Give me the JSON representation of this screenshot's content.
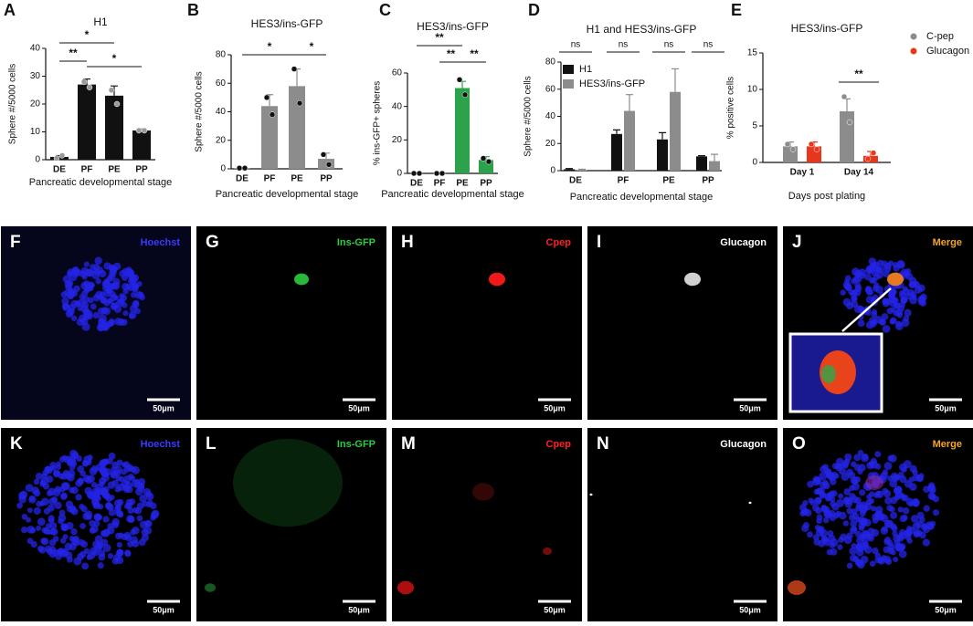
{
  "chart_data": [
    {
      "type": "bar",
      "panel": "A",
      "title": "H1",
      "y_label": "Sphere #/5000 cells",
      "x_label": "Pancreatic developmental stage",
      "categories": [
        "DE",
        "PF",
        "PE",
        "PP"
      ],
      "values": [
        1,
        27,
        23,
        10.5
      ],
      "errors": [
        0.5,
        2,
        3.5,
        0.5
      ],
      "points": [
        [
          0.5,
          1.5
        ],
        [
          28,
          26
        ],
        [
          25,
          20
        ],
        [
          10.5,
          10.5
        ]
      ],
      "color": "#111111",
      "ylim": [
        0,
        40
      ],
      "yticks": [
        0,
        10,
        20,
        30,
        40
      ],
      "significance": [
        {
          "pair": [
            "DE",
            "PF"
          ],
          "label": "**"
        },
        {
          "pair": [
            "DE",
            "PE"
          ],
          "label": "*"
        },
        {
          "pair": [
            "PF",
            "PP"
          ],
          "label": "*"
        }
      ]
    },
    {
      "type": "bar",
      "panel": "B",
      "title": "HES3/ins-GFP",
      "y_label": "Sphere #/5000 cells",
      "x_label": "Pancreatic developmental stage",
      "categories": [
        "DE",
        "PF",
        "PE",
        "PP"
      ],
      "values": [
        0.5,
        44,
        58,
        7
      ],
      "errors": [
        0.5,
        8,
        12,
        4
      ],
      "points": [
        [
          0.5,
          0.5
        ],
        [
          50,
          38
        ],
        [
          70,
          46
        ],
        [
          10,
          3
        ]
      ],
      "color": "#8c8c8c",
      "ylim": [
        0,
        80
      ],
      "yticks": [
        0,
        20,
        40,
        60,
        80
      ],
      "significance": [
        {
          "pair": [
            "DE",
            "PE"
          ],
          "label": "*"
        },
        {
          "pair": [
            "PE",
            "PP"
          ],
          "label": "*"
        }
      ]
    },
    {
      "type": "bar",
      "panel": "C",
      "title": "HES3/ins-GFP",
      "y_label": "% ins-GFP+ spheres",
      "x_label": "Pancreatic developmental stage",
      "categories": [
        "DE",
        "PF",
        "PE",
        "PP"
      ],
      "values": [
        0,
        0,
        51,
        8
      ],
      "errors": [
        0,
        0,
        4,
        2
      ],
      "points": [
        [
          0,
          0
        ],
        [
          0,
          0
        ],
        [
          56,
          47
        ],
        [
          9,
          7
        ]
      ],
      "color": "#2ca24a",
      "ylim": [
        0,
        60
      ],
      "yticks": [
        0,
        20,
        40,
        60
      ],
      "significance": [
        {
          "pair": [
            "DE",
            "PE"
          ],
          "label": "**"
        },
        {
          "pair": [
            "PF",
            "PE"
          ],
          "label": "**"
        },
        {
          "pair": [
            "PE",
            "PP"
          ],
          "label": "**"
        }
      ]
    },
    {
      "type": "bar",
      "panel": "D",
      "title": "H1 and HES3/ins-GFP",
      "y_label": "Sphere #/5000 cells",
      "x_label": "Pancreatic developmental stage",
      "categories": [
        "DE",
        "PF",
        "PE",
        "PP"
      ],
      "series": [
        {
          "name": "H1",
          "color": "#111111",
          "values": [
            1,
            27,
            23,
            10.5
          ],
          "errors": [
            0.5,
            3,
            5,
            0.5
          ]
        },
        {
          "name": "HES3/ins-GFP",
          "color": "#8c8c8c",
          "values": [
            0.5,
            44,
            58,
            7
          ],
          "errors": [
            0.5,
            12,
            17,
            5
          ]
        }
      ],
      "ylim": [
        0,
        80
      ],
      "yticks": [
        0,
        20,
        40,
        60,
        80
      ],
      "legend": "top-left",
      "significance": [
        {
          "pair": [
            "DE",
            "DE"
          ],
          "label": "ns"
        },
        {
          "pair": [
            "PF",
            "PF"
          ],
          "label": "ns"
        },
        {
          "pair": [
            "PE",
            "PE"
          ],
          "label": "ns"
        },
        {
          "pair": [
            "PP",
            "PP"
          ],
          "label": "ns"
        }
      ]
    },
    {
      "type": "bar",
      "panel": "E",
      "title": "HES3/ins-GFP",
      "y_label": "% positive cells",
      "x_label": "Days post plating",
      "categories": [
        "Day 1",
        "Day 14"
      ],
      "series": [
        {
          "name": "C-pep",
          "color": "#8c8c8c",
          "values": [
            2.2,
            7
          ],
          "errors": [
            0.6,
            1.7
          ],
          "points": [
            [
              2.5,
              1.8
            ],
            [
              9,
              5.5
            ]
          ]
        },
        {
          "name": "Glucagon",
          "color": "#e8361c",
          "values": [
            2.2,
            0.9
          ],
          "errors": [
            0.6,
            0.6
          ],
          "points": [
            [
              2.5,
              1.8
            ],
            [
              0.5,
              1.3
            ]
          ]
        }
      ],
      "ylim": [
        0,
        15
      ],
      "yticks": [
        0,
        5,
        10,
        15
      ],
      "legend": "right",
      "significance": [
        {
          "pair": [
            "Day 14",
            "Day 14"
          ],
          "label": "**"
        }
      ]
    }
  ],
  "image_panels": [
    {
      "panel": "F",
      "stain": "Hoechst",
      "color": "#3a3aff",
      "scale_bar": "50μm"
    },
    {
      "panel": "G",
      "stain": "Ins-GFP",
      "color": "#2ecc40",
      "scale_bar": "50μm"
    },
    {
      "panel": "H",
      "stain": "Cpep",
      "color": "#ff2020",
      "scale_bar": "50μm"
    },
    {
      "panel": "I",
      "stain": "Glucagon",
      "color": "#ffffff",
      "scale_bar": "50μm"
    },
    {
      "panel": "J",
      "stain": "Merge",
      "color": "#f5a623",
      "scale_bar": "50μm"
    },
    {
      "panel": "K",
      "stain": "Hoechst",
      "color": "#3a3aff",
      "scale_bar": "50μm"
    },
    {
      "panel": "L",
      "stain": "Ins-GFP",
      "color": "#2ecc40",
      "scale_bar": "50μm"
    },
    {
      "panel": "M",
      "stain": "Cpep",
      "color": "#ff2020",
      "scale_bar": "50μm"
    },
    {
      "panel": "N",
      "stain": "Glucagon",
      "color": "#ffffff",
      "scale_bar": "50μm"
    },
    {
      "panel": "O",
      "stain": "Merge",
      "color": "#f5a623",
      "scale_bar": "50μm"
    }
  ]
}
